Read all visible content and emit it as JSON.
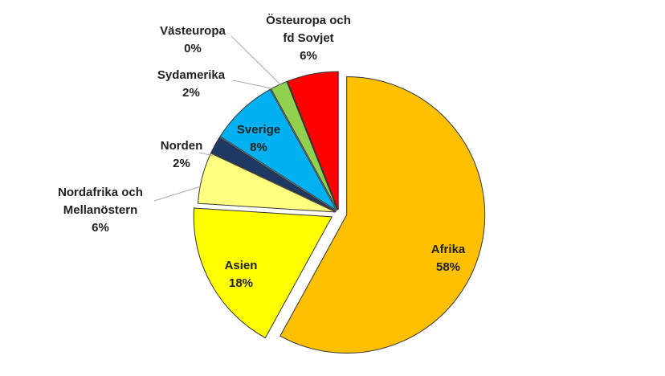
{
  "chart_data": {
    "type": "pie",
    "categories": [
      "Afrika",
      "Asien",
      "Nordafrika och Mellanöstern",
      "Norden",
      "Sverige",
      "Sydamerika",
      "Västeuropa",
      "Östeuropa och fd Sovjet"
    ],
    "values": [
      58,
      18,
      6,
      2,
      8,
      2,
      0,
      6
    ],
    "value_labels": [
      "58%",
      "18%",
      "6%",
      "2%",
      "8%",
      "2%",
      "0%",
      "6%"
    ],
    "colors": [
      "#FFC000",
      "#FFFF00",
      "#FFFF80",
      "#1F3864",
      "#00B0F0",
      "#92D050",
      "#1F3864",
      "#FF0000"
    ]
  }
}
